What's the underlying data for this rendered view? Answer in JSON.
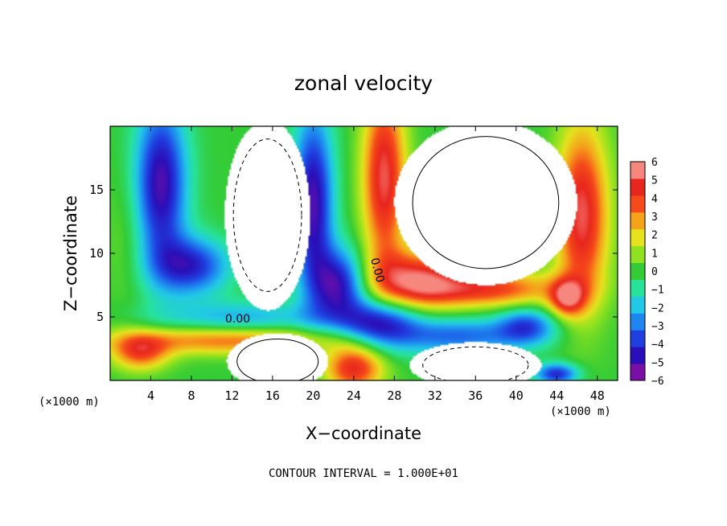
{
  "chart_data": {
    "type": "heatmap",
    "title": "zonal velocity",
    "xlabel": "X−coordinate",
    "ylabel": "Z−coordinate",
    "x_unit_label_left": "(×1000 m)",
    "x_unit_label_right": "(×1000 m)",
    "xlim": [
      0,
      50
    ],
    "ylim": [
      0,
      20
    ],
    "x_ticks": [
      4,
      8,
      12,
      16,
      20,
      24,
      28,
      32,
      36,
      40,
      44,
      48
    ],
    "y_ticks": [
      5,
      10,
      15
    ],
    "colorbar": {
      "ticks": [
        6,
        5,
        4,
        3,
        2,
        1,
        0,
        -1,
        -2,
        -3,
        -4,
        -5,
        -6
      ],
      "tick_labels": [
        "6",
        "5",
        "4",
        "3",
        "2",
        "1",
        "0",
        "−1",
        "−2",
        "−3",
        "−4",
        "−5",
        "−6"
      ],
      "range": [
        -6,
        6
      ],
      "colors": [
        "#7a0fa6",
        "#2a0fb8",
        "#1f3fe0",
        "#1e86f0",
        "#22c9e6",
        "#27e39a",
        "#34cc36",
        "#8fe21e",
        "#e6e21e",
        "#f5a31a",
        "#f54a1a",
        "#e8261e",
        "#f6877f"
      ]
    },
    "contour_labels": [
      "0.00",
      "0.00"
    ],
    "contour_interval_text": "CONTOUR INTERVAL = 1.000E+01",
    "field": {
      "units_x": "km",
      "units_z": "km",
      "background": 0.0,
      "blobs": [
        {
          "x": 5.0,
          "z": 15.5,
          "sx": 1.8,
          "sz": 4.5,
          "amp": -5.5
        },
        {
          "x": 8.0,
          "z": 9.0,
          "sx": 2.6,
          "sz": 1.6,
          "amp": -4.5
        },
        {
          "x": 20.0,
          "z": 14.0,
          "sx": 1.4,
          "sz": 5.0,
          "amp": -5.5
        },
        {
          "x": 22.5,
          "z": 7.5,
          "sx": 1.8,
          "sz": 2.0,
          "amp": -5.0
        },
        {
          "x": 26.5,
          "z": 4.5,
          "sx": 2.6,
          "sz": 1.4,
          "amp": -4.8
        },
        {
          "x": 34.0,
          "z": 3.5,
          "sx": 5.0,
          "sz": 1.0,
          "amp": -3.5
        },
        {
          "x": 41.0,
          "z": 4.3,
          "sx": 2.0,
          "sz": 1.0,
          "amp": -3.5
        },
        {
          "x": 44.0,
          "z": 0.5,
          "sx": 1.5,
          "sz": 0.6,
          "amp": -4.5
        },
        {
          "x": 13.0,
          "z": 4.8,
          "sx": 6.0,
          "sz": 1.0,
          "amp": -2.5
        },
        {
          "x": 27.0,
          "z": 16.0,
          "sx": 1.5,
          "sz": 5.0,
          "amp": 5.5
        },
        {
          "x": 30.0,
          "z": 8.0,
          "sx": 3.0,
          "sz": 1.6,
          "amp": 5.0
        },
        {
          "x": 37.0,
          "z": 7.2,
          "sx": 5.0,
          "sz": 1.0,
          "amp": 4.5
        },
        {
          "x": 46.5,
          "z": 13.0,
          "sx": 1.8,
          "sz": 5.0,
          "amp": 5.5
        },
        {
          "x": 45.0,
          "z": 6.5,
          "sx": 1.2,
          "sz": 1.0,
          "amp": 4.5
        },
        {
          "x": 12.0,
          "z": 3.2,
          "sx": 8.0,
          "sz": 0.8,
          "amp": 4.0
        },
        {
          "x": 3.0,
          "z": 2.2,
          "sx": 2.0,
          "sz": 1.0,
          "amp": 4.0
        },
        {
          "x": 24.0,
          "z": 1.0,
          "sx": 2.0,
          "sz": 1.3,
          "amp": 5.0
        },
        {
          "x": 1.5,
          "z": 11.0,
          "sx": 1.5,
          "sz": 4.0,
          "amp": 0.6
        }
      ],
      "masked_regions": [
        {
          "cx": 15.5,
          "cz": 13.0,
          "rx": 4.2,
          "rz": 7.5
        },
        {
          "cx": 37.0,
          "cz": 14.0,
          "rx": 9.0,
          "rz": 6.5
        },
        {
          "cx": 16.5,
          "cz": 1.5,
          "rx": 5.0,
          "rz": 2.2
        },
        {
          "cx": 36.0,
          "cz": 1.2,
          "rx": 6.5,
          "rz": 1.8
        }
      ]
    }
  }
}
